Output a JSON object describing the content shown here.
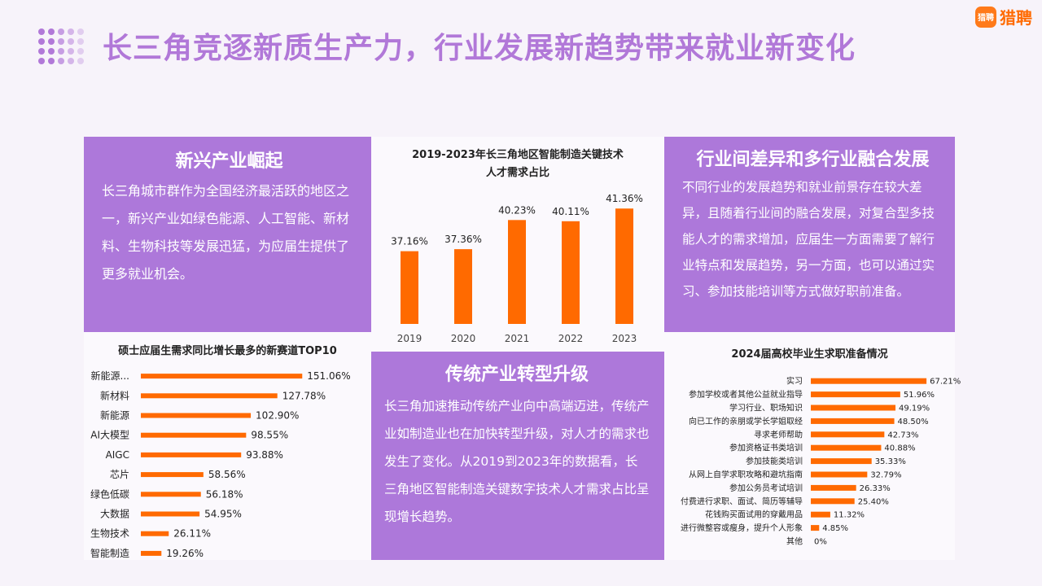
{
  "header": {
    "title": "长三角竞逐新质生产力，行业发展新趋势带来就业新变化",
    "logo_mark": "猎聘",
    "logo_text": "猎聘"
  },
  "panels": {
    "emerging": {
      "heading": "新兴产业崛起",
      "body": "长三角城市群作为全国经济最活跃的地区之一，新兴产业如绿色能源、人工智能、新材料、生物科技等发展迅猛，为应届生提供了更多就业机会。"
    },
    "traditional": {
      "heading": "传统产业转型升级",
      "body": "长三角加速推动传统产业向中高端迈进，传统产业如制造业也在加快转型升级，对人才的需求也发生了变化。从2019到2023年的数据看，长三角地区智能制造关键数字技术人才需求占比呈现增长趋势。"
    },
    "industry_diff": {
      "heading": "行业间差异和多行业融合发展",
      "body": "不同行业的发展趋势和就业前景存在较大差异，且随着行业间的融合发展，对复合型多技能人才的需求增加，应届生一方面需要了解行业特点和发展趋势，另一方面，也可以通过实习、参加技能培训等方式做好职前准备。"
    }
  },
  "colors": {
    "accent_purple": "#ad78da",
    "title_purple": "#b178d8",
    "bar_orange": "#ff6a00",
    "brand_orange": "#ff7a1a"
  },
  "chart_data": [
    {
      "type": "bar",
      "title_line1": "2019-2023年长三角地区智能制造关键技术",
      "title_line2": "人才需求占比",
      "categories": [
        "2019",
        "2020",
        "2021",
        "2022",
        "2023"
      ],
      "values": [
        37.16,
        37.36,
        40.23,
        40.11,
        41.36
      ],
      "value_labels": [
        "37.16%",
        "37.36%",
        "40.23%",
        "40.11%",
        "41.36%"
      ],
      "ylim": [
        30,
        42.5
      ],
      "grid": false
    },
    {
      "type": "bar",
      "orientation": "horizontal",
      "title": "硕士应届生需求同比增长最多的新赛道TOP10",
      "categories": [
        "新能源...",
        "新材料",
        "新能源",
        "AI大模型",
        "AIGC",
        "芯片",
        "绿色低碳",
        "大数据",
        "生物技术",
        "智能制造"
      ],
      "values": [
        151.06,
        127.78,
        102.9,
        98.55,
        93.88,
        58.56,
        56.18,
        54.95,
        26.11,
        19.26
      ],
      "value_labels": [
        "151.06%",
        "127.78%",
        "102.90%",
        "98.55%",
        "93.88%",
        "58.56%",
        "56.18%",
        "54.95%",
        "26.11%",
        "19.26%"
      ],
      "xlim": [
        0,
        160
      ],
      "grid": false
    },
    {
      "type": "bar",
      "orientation": "horizontal",
      "title": "2024届高校毕业生求职准备情况",
      "categories": [
        "实习",
        "参加学校或者其他公益就业指导",
        "学习行业、职场知识",
        "向已工作的亲朋或学长学姐取经",
        "寻求老师帮助",
        "参加资格证书类培训",
        "参加技能类培训",
        "从网上自学求职攻略和避坑指南",
        "参加公务员考试培训",
        "付费进行求职、面试、简历等辅导",
        "花钱购买面试用的穿戴用品",
        "进行微整容或瘦身，提升个人形象",
        "其他"
      ],
      "values": [
        67.21,
        51.96,
        49.19,
        48.5,
        42.73,
        40.88,
        35.33,
        32.79,
        26.33,
        25.4,
        11.32,
        4.85,
        0
      ],
      "value_labels": [
        "67.21%",
        "51.96%",
        "49.19%",
        "48.50%",
        "42.73%",
        "40.88%",
        "35.33%",
        "32.79%",
        "26.33%",
        "25.40%",
        "11.32%",
        "4.85%",
        "0%"
      ],
      "xlim": [
        0,
        70
      ],
      "grid": false
    }
  ]
}
